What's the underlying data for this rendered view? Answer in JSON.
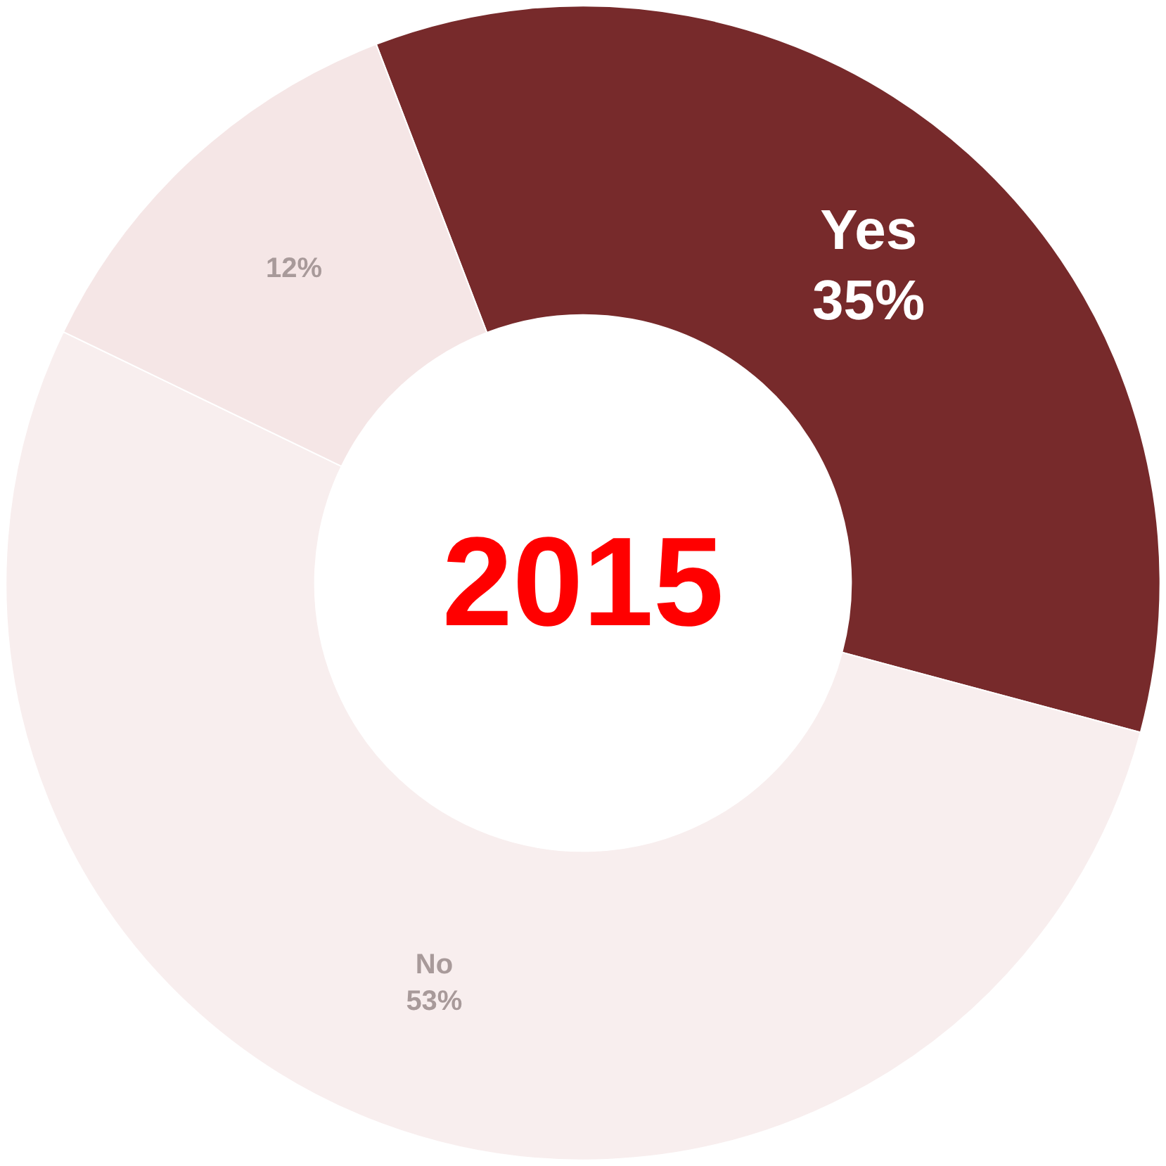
{
  "chart_data": {
    "type": "donut",
    "title": "2015",
    "categories": [
      "Yes",
      "No",
      null
    ],
    "values": [
      35,
      53,
      12
    ],
    "value_labels": [
      "35%",
      "53%",
      "12%"
    ],
    "colors": [
      "#772a2b",
      "#f8eeee",
      "#f5e6e6"
    ],
    "legend": false
  }
}
